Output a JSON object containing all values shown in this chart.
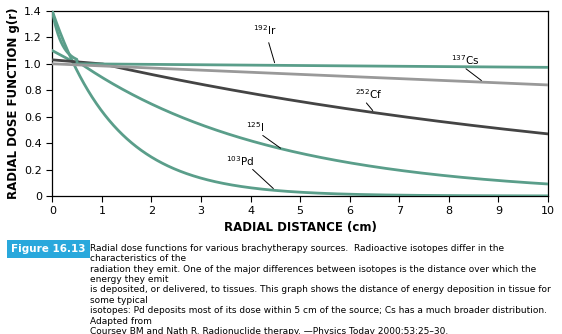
{
  "xlabel": "RADIAL DISTANCE (cm)",
  "ylabel": "RADIAL DOSE FUNCTION g(r)",
  "xlim": [
    0,
    10
  ],
  "ylim": [
    0,
    1.4
  ],
  "xticks": [
    0,
    1,
    2,
    3,
    4,
    5,
    6,
    7,
    8,
    9,
    10
  ],
  "yticks": [
    0,
    0.2,
    0.4,
    0.6,
    0.8,
    1.0,
    1.2,
    1.4
  ],
  "ir192_color": "#5a9e8a",
  "cs137_color": "#999999",
  "cf252_color": "#444444",
  "i125_color": "#5a9e8a",
  "pd103_color": "#5a9e8a",
  "background_color": "#ffffff",
  "linewidth": 2.0,
  "caption_bg": "#29a8dc",
  "caption_label": "Figure 16.13",
  "caption_text": "Radial dose functions for various brachytherapy sources.  Radioactive isotopes differ in the characteristics of the radiation they emit. One of the major differences between isotopes is the distance over which the energy they emit is deposited, or delivered, to tissues. This graph shows the distance of energy deposition in tissue for some typical isotopes: Pd deposits most of its dose within 5 cm of the source; Cs has a much broader distribution. Adapted from Coursey BM and Nath R. Radionuclide therapy. Physics Today 2000;53:25–30.",
  "annot_fontsize": 7.5,
  "axis_label_fontsize": 8.5,
  "tick_fontsize": 8
}
